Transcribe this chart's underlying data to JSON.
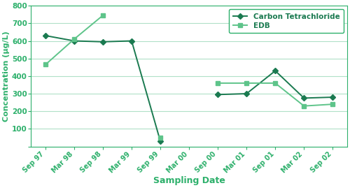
{
  "x_labels": [
    "Sep 97",
    "Mar 98",
    "Sep 98",
    "Mar 99",
    "Sep 99",
    "Mar 00",
    "Sep 00",
    "Mar 01",
    "Sep 01",
    "Mar 02",
    "Sep 02"
  ],
  "carbon_tet": [
    630,
    600,
    595,
    600,
    30,
    null,
    295,
    300,
    430,
    275,
    280
  ],
  "edb": [
    465,
    610,
    745,
    null,
    50,
    null,
    360,
    360,
    360,
    230,
    240
  ],
  "carbon_tet_color": "#1a7a50",
  "edb_color": "#5ec48a",
  "grid_color": "#b0e0c8",
  "axis_color": "#2db06b",
  "tick_color": "#2db06b",
  "background_color": "#ffffff",
  "ylabel": "Concentration (μg/L)",
  "xlabel": "Sampling Date",
  "ylim": [
    0,
    800
  ],
  "yticks": [
    0,
    100,
    200,
    300,
    400,
    500,
    600,
    700,
    800
  ],
  "legend_labels": [
    "Carbon Tetrachloride",
    "EDB"
  ],
  "figsize": [
    5.0,
    2.69
  ],
  "dpi": 100
}
